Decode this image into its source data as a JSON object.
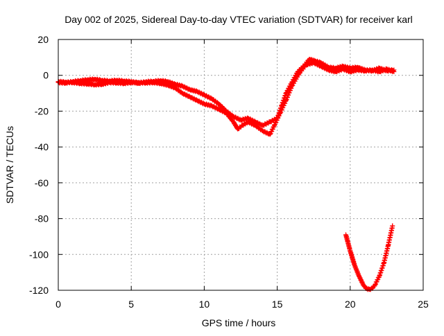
{
  "chart_data": {
    "type": "scatter",
    "title": "Day 002 of 2025, Sidereal Day-to-day VTEC variation (SDTVAR) for receiver karl",
    "xlabel": "GPS time / hours",
    "ylabel": "SDTVAR / TECUs",
    "xlim": [
      0,
      25
    ],
    "ylim": [
      -120,
      20
    ],
    "x_ticks": [
      0,
      5,
      10,
      15,
      20,
      25
    ],
    "y_ticks": [
      -120,
      -100,
      -80,
      -60,
      -40,
      -20,
      0,
      20
    ],
    "grid": true,
    "legend": "none",
    "marker": "plus",
    "series_color": "#ff0000",
    "series": [
      {
        "points": [
          [
            0.0,
            -3.5
          ],
          [
            0.5,
            -3.8
          ],
          [
            1.0,
            -4.0
          ],
          [
            1.5,
            -4.5
          ],
          [
            2.0,
            -4.8
          ],
          [
            2.5,
            -5.2
          ],
          [
            3.0,
            -5.0
          ],
          [
            3.5,
            -4.0
          ],
          [
            4.0,
            -4.2
          ],
          [
            4.5,
            -4.5
          ],
          [
            5.0,
            -4.0
          ],
          [
            5.5,
            -4.0
          ],
          [
            6.0,
            -4.2
          ],
          [
            6.5,
            -4.0
          ],
          [
            7.0,
            -4.5
          ],
          [
            7.5,
            -5.5
          ],
          [
            8.0,
            -7.0
          ],
          [
            8.5,
            -10.0
          ],
          [
            9.0,
            -12.0
          ],
          [
            9.5,
            -14.0
          ],
          [
            10.0,
            -16.0
          ],
          [
            10.5,
            -17.0
          ],
          [
            11.0,
            -19.0
          ],
          [
            11.5,
            -21.0
          ],
          [
            12.0,
            -26.0
          ],
          [
            12.3,
            -30.0
          ],
          [
            12.6,
            -28.0
          ],
          [
            13.0,
            -26.0
          ],
          [
            13.5,
            -28.0
          ],
          [
            14.0,
            -31.0
          ],
          [
            14.5,
            -33.0
          ],
          [
            14.8,
            -28.0
          ],
          [
            15.2,
            -21.0
          ],
          [
            15.6,
            -14.0
          ],
          [
            16.0,
            -6.0
          ],
          [
            16.5,
            1.0
          ],
          [
            17.0,
            6.0
          ],
          [
            17.5,
            7.0
          ],
          [
            18.0,
            5.0
          ],
          [
            18.5,
            3.0
          ],
          [
            19.0,
            2.0
          ],
          [
            19.5,
            3.5
          ],
          [
            20.0,
            2.0
          ],
          [
            20.5,
            3.0
          ],
          [
            21.0,
            2.5
          ],
          [
            21.5,
            3.0
          ],
          [
            22.0,
            2.0
          ],
          [
            22.5,
            3.5
          ],
          [
            23.0,
            2.0
          ]
        ]
      },
      {
        "points": [
          [
            0.0,
            -4.0
          ],
          [
            0.5,
            -4.3
          ],
          [
            1.0,
            -3.5
          ],
          [
            1.5,
            -3.0
          ],
          [
            2.0,
            -2.5
          ],
          [
            2.5,
            -2.2
          ],
          [
            3.0,
            -2.8
          ],
          [
            3.5,
            -3.2
          ],
          [
            4.0,
            -2.8
          ],
          [
            4.5,
            -3.2
          ],
          [
            5.0,
            -3.5
          ],
          [
            5.5,
            -4.5
          ],
          [
            6.0,
            -3.6
          ],
          [
            6.5,
            -3.4
          ],
          [
            7.0,
            -3.0
          ],
          [
            7.5,
            -3.5
          ],
          [
            8.0,
            -5.0
          ],
          [
            8.5,
            -6.0
          ],
          [
            9.0,
            -8.0
          ],
          [
            9.5,
            -9.0
          ],
          [
            10.0,
            -11.0
          ],
          [
            10.5,
            -13.0
          ],
          [
            11.0,
            -16.0
          ],
          [
            11.5,
            -20.0
          ],
          [
            12.0,
            -23.0
          ],
          [
            12.5,
            -25.0
          ],
          [
            13.0,
            -24.0
          ],
          [
            13.5,
            -26.0
          ],
          [
            14.0,
            -28.0
          ],
          [
            14.5,
            -26.0
          ],
          [
            15.0,
            -24.0
          ],
          [
            15.3,
            -17.0
          ],
          [
            15.6,
            -10.0
          ],
          [
            16.0,
            -4.0
          ],
          [
            16.4,
            2.0
          ],
          [
            16.8,
            5.0
          ],
          [
            17.2,
            9.0
          ],
          [
            17.6,
            8.0
          ],
          [
            18.0,
            7.0
          ],
          [
            18.5,
            4.5
          ],
          [
            19.0,
            4.0
          ],
          [
            19.5,
            5.0
          ],
          [
            20.0,
            4.0
          ],
          [
            20.5,
            4.5
          ],
          [
            21.0,
            3.0
          ],
          [
            21.5,
            2.5
          ],
          [
            22.0,
            4.0
          ],
          [
            22.5,
            2.5
          ],
          [
            23.0,
            3.0
          ]
        ]
      },
      {
        "points": [
          [
            19.7,
            -89.0
          ],
          [
            20.0,
            -98.0
          ],
          [
            20.3,
            -106.0
          ],
          [
            20.6,
            -112.0
          ],
          [
            20.9,
            -117.0
          ],
          [
            21.1,
            -119.0
          ],
          [
            21.3,
            -119.5
          ],
          [
            21.5,
            -119.0
          ],
          [
            21.7,
            -117.0
          ],
          [
            22.0,
            -112.0
          ],
          [
            22.3,
            -105.0
          ],
          [
            22.6,
            -95.0
          ],
          [
            22.9,
            -84.0
          ]
        ]
      }
    ]
  }
}
